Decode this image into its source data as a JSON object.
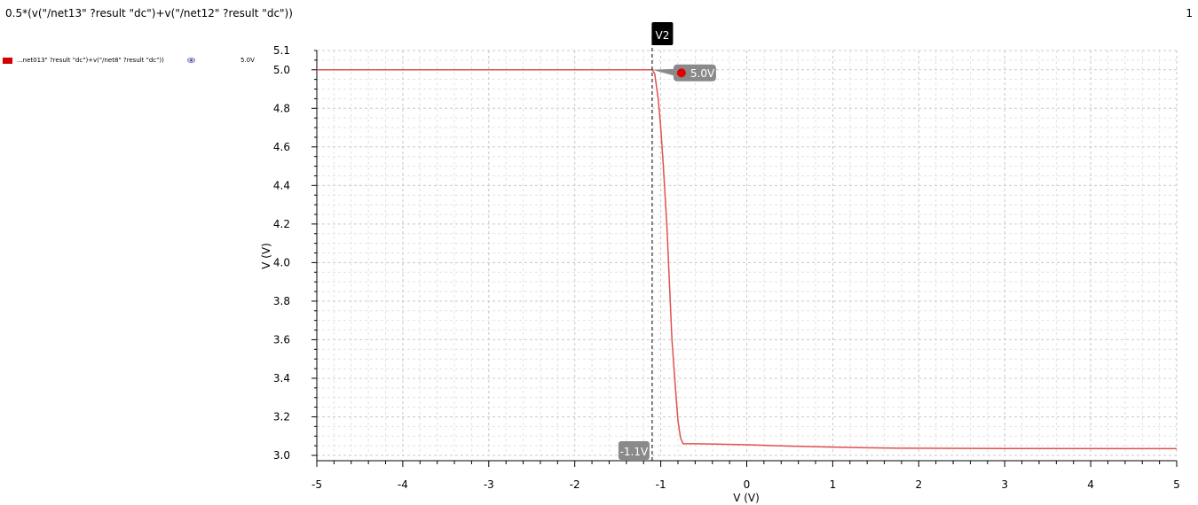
{
  "header": {
    "title": "0.5*(v(\"/net13\" ?result \"dc\")+v(\"/net12\" ?result \"dc\"))",
    "page_number": "1"
  },
  "legend": {
    "label": "...net013\" ?result \"dc\")+v(\"/net8\" ?result \"dc\"))",
    "value": "5.0V",
    "color": "#d40000",
    "eye_icon": "eye-icon"
  },
  "marker": {
    "name": "V2",
    "x_label": "-1.1V",
    "y_label": "5.0V"
  },
  "chart_data": {
    "type": "line",
    "xlabel": "V (V)",
    "ylabel": "V (V)",
    "xlim": [
      -5,
      5
    ],
    "ylim": [
      3.0,
      5.1
    ],
    "x_ticks": [
      "-5",
      "-4",
      "-3",
      "-2",
      "-1",
      "0",
      "1",
      "2",
      "3",
      "4",
      "5"
    ],
    "y_ticks": [
      "3.0",
      "3.2",
      "3.4",
      "3.6",
      "3.8",
      "4.0",
      "4.2",
      "4.4",
      "4.6",
      "4.8",
      "5.0",
      "5.1"
    ],
    "grid": true,
    "series": [
      {
        "color": "#e05050",
        "x": [
          -5,
          -1.1,
          -1.07,
          -1.03,
          -1.0,
          -0.97,
          -0.93,
          -0.9,
          -0.87,
          -0.83,
          -0.8,
          -0.77,
          -0.74,
          -0.7,
          -0.6,
          -0.3,
          0.0,
          0.35,
          0.8,
          1.3,
          1.75,
          3.0,
          5.0
        ],
        "y": [
          5.0,
          5.0,
          4.98,
          4.85,
          4.7,
          4.5,
          4.2,
          3.9,
          3.6,
          3.35,
          3.18,
          3.09,
          3.06,
          3.06,
          3.06,
          3.058,
          3.055,
          3.05,
          3.045,
          3.04,
          3.037,
          3.036,
          3.035
        ]
      }
    ],
    "marker_x": -1.1,
    "marker_y": 5.0
  }
}
